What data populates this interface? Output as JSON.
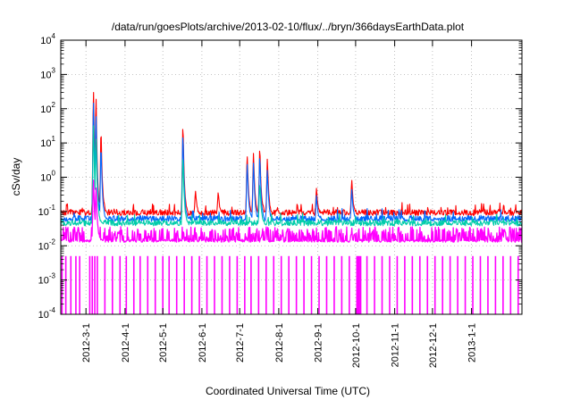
{
  "chart_data": {
    "type": "line",
    "title": "/data/run/goesPlots/archive/2013-02-10/flux/../bryn/366daysEarthData.plot",
    "xlabel": "Coordinated Universal Time (UTC)",
    "ylabel": "cSv/day",
    "y_scale": "log",
    "ylim": [
      0.0001,
      10000
    ],
    "xlim": [
      "2012-02-10",
      "2013-02-10"
    ],
    "grid": true,
    "legend": "none",
    "y_ticks": [
      {
        "value": 0.0001,
        "mant": "10",
        "exp": "-4"
      },
      {
        "value": 0.001,
        "mant": "10",
        "exp": "-3"
      },
      {
        "value": 0.01,
        "mant": "10",
        "exp": "-2"
      },
      {
        "value": 0.1,
        "mant": "10",
        "exp": "-1"
      },
      {
        "value": 1,
        "mant": "10",
        "exp": "0"
      },
      {
        "value": 10,
        "mant": "10",
        "exp": "1"
      },
      {
        "value": 100,
        "mant": "10",
        "exp": "2"
      },
      {
        "value": 1000,
        "mant": "10",
        "exp": "3"
      },
      {
        "value": 10000,
        "mant": "10",
        "exp": "4"
      }
    ],
    "x_ticks": [
      {
        "date": "2012-03-01",
        "label": "2012-3-1"
      },
      {
        "date": "2012-04-01",
        "label": "2012-4-1"
      },
      {
        "date": "2012-05-01",
        "label": "2012-5-1"
      },
      {
        "date": "2012-06-01",
        "label": "2012-6-1"
      },
      {
        "date": "2012-07-01",
        "label": "2012-7-1"
      },
      {
        "date": "2012-08-01",
        "label": "2012-8-1"
      },
      {
        "date": "2012-09-01",
        "label": "2012-9-1"
      },
      {
        "date": "2012-10-01",
        "label": "2012-10-1"
      },
      {
        "date": "2012-11-01",
        "label": "2012-11-1"
      },
      {
        "date": "2012-12-01",
        "label": "2012-12-1"
      },
      {
        "date": "2013-01-01",
        "label": "2013-1-1"
      }
    ],
    "series": [
      {
        "color": "#ff0000",
        "baseline": 0.09,
        "events": [
          {
            "date": "2012-03-07",
            "value": 400
          },
          {
            "date": "2012-03-09",
            "value": 300
          },
          {
            "date": "2012-03-13",
            "value": 30
          },
          {
            "date": "2012-05-17",
            "value": 45
          },
          {
            "date": "2012-05-27",
            "value": 0.4
          },
          {
            "date": "2012-06-14",
            "value": 0.4
          },
          {
            "date": "2012-07-07",
            "value": 5
          },
          {
            "date": "2012-07-12",
            "value": 6
          },
          {
            "date": "2012-07-17",
            "value": 9
          },
          {
            "date": "2012-07-23",
            "value": 4
          },
          {
            "date": "2012-08-31",
            "value": 0.5
          },
          {
            "date": "2012-09-28",
            "value": 0.9
          }
        ]
      },
      {
        "color": "#0066ff",
        "baseline": 0.06,
        "events": [
          {
            "date": "2012-03-07",
            "value": 200
          },
          {
            "date": "2012-03-09",
            "value": 100
          },
          {
            "date": "2012-03-13",
            "value": 10
          },
          {
            "date": "2012-05-17",
            "value": 25
          },
          {
            "date": "2012-07-07",
            "value": 3
          },
          {
            "date": "2012-07-12",
            "value": 3
          },
          {
            "date": "2012-07-17",
            "value": 5
          },
          {
            "date": "2012-07-23",
            "value": 2
          },
          {
            "date": "2012-08-31",
            "value": 0.3
          },
          {
            "date": "2012-09-28",
            "value": 0.5
          }
        ]
      },
      {
        "color": "#00ccaa",
        "baseline": 0.045,
        "events": [
          {
            "date": "2012-03-07",
            "value": 40
          },
          {
            "date": "2012-03-09",
            "value": 20
          },
          {
            "date": "2012-05-17",
            "value": 5
          },
          {
            "date": "2012-07-17",
            "value": 0.8
          }
        ]
      },
      {
        "color": "#ff00ff",
        "baseline": 0.015,
        "low": 0.005,
        "events": [
          {
            "date": "2012-03-07",
            "value": 1
          },
          {
            "date": "2012-03-09",
            "value": 0.6
          }
        ],
        "dropouts": [
          "2012-02-11",
          "2012-02-14",
          "2012-02-18",
          "2012-02-22",
          "2012-02-25",
          "2012-03-04",
          "2012-03-06",
          "2012-03-08",
          "2012-03-10",
          "2012-03-16",
          "2012-03-22",
          "2012-03-28",
          "2012-04-02",
          "2012-04-08",
          "2012-04-13",
          "2012-04-19",
          "2012-04-25",
          "2012-05-01",
          "2012-05-06",
          "2012-05-12",
          "2012-05-18",
          "2012-05-24",
          "2012-05-30",
          "2012-06-05",
          "2012-06-11",
          "2012-06-17",
          "2012-06-23",
          "2012-06-29",
          "2012-07-05",
          "2012-07-10",
          "2012-07-16",
          "2012-07-22",
          "2012-07-28",
          "2012-08-03",
          "2012-08-09",
          "2012-08-15",
          "2012-08-21",
          "2012-08-27",
          "2012-09-02",
          "2012-09-08",
          "2012-09-14",
          "2012-09-20",
          "2012-09-26",
          "2012-10-02",
          "2012-10-03",
          "2012-10-04",
          "2012-10-05",
          "2012-10-10",
          "2012-10-16",
          "2012-10-22",
          "2012-10-28",
          "2012-11-03",
          "2012-11-09",
          "2012-11-15",
          "2012-11-21",
          "2012-11-27",
          "2012-12-03",
          "2012-12-09",
          "2012-12-15",
          "2012-12-21",
          "2012-12-27",
          "2013-01-02",
          "2013-01-08",
          "2013-01-14",
          "2013-01-20",
          "2013-01-26",
          "2013-02-01",
          "2013-02-07"
        ]
      }
    ]
  }
}
